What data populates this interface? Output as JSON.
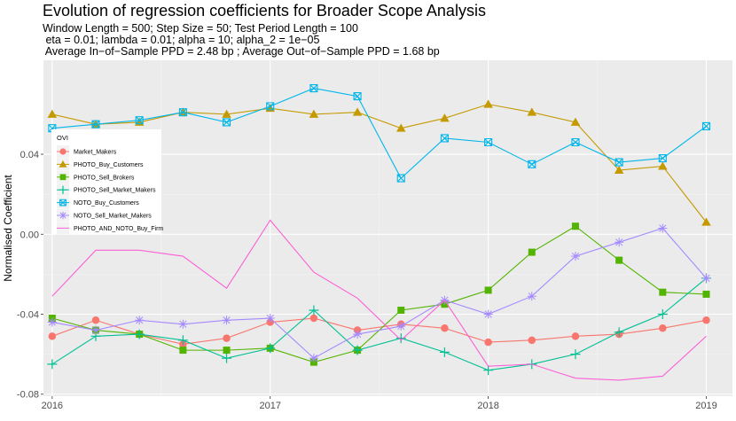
{
  "chart_data": {
    "type": "line",
    "title": "Evolution of regression coefficients for Broader Scope Analysis",
    "subtitle_lines": [
      "Window Length = 500; Step Size = 50; Test Period Length = 100",
      " eta = 0.01; lambda = 0.01; alpha = 10; alpha_2 = 1e−05",
      " Average In−of−Sample PPD = 2.48 bp ; Average Out−of−Sample PPD = 1.68 bp"
    ],
    "xlabel": "",
    "ylabel": "Normalised Coefficient",
    "legend_title": "OVI",
    "legend_position": "left-inside",
    "xlim": [
      2015.96,
      2019.12
    ],
    "ylim": [
      -0.081,
      0.087
    ],
    "x_ticks": [
      2016,
      2017,
      2018,
      2019
    ],
    "x_tick_labels": [
      "2016",
      "2017",
      "2018",
      "2019"
    ],
    "y_ticks": [
      -0.08,
      -0.04,
      0.0,
      0.04
    ],
    "y_tick_labels": [
      "-0.08",
      "-0.04",
      "0.00",
      "0.04"
    ],
    "grid": true,
    "x": [
      2016.0,
      2016.2,
      2016.4,
      2016.6,
      2016.8,
      2017.0,
      2017.2,
      2017.4,
      2017.6,
      2017.8,
      2018.0,
      2018.2,
      2018.4,
      2018.6,
      2018.8,
      2019.0
    ],
    "series": [
      {
        "name": "Market_Makers",
        "color": "#F8766D",
        "marker": "circle",
        "values": [
          -0.051,
          -0.043,
          -0.05,
          -0.055,
          -0.052,
          -0.044,
          -0.042,
          -0.048,
          -0.045,
          -0.047,
          -0.054,
          -0.053,
          -0.051,
          -0.05,
          -0.047,
          -0.043
        ]
      },
      {
        "name": "PHOTO_Buy_Customers",
        "color": "#C49A00",
        "marker": "triangle",
        "values": [
          0.06,
          0.055,
          0.056,
          0.061,
          0.06,
          0.063,
          0.06,
          0.061,
          0.053,
          0.058,
          0.065,
          0.061,
          0.056,
          0.032,
          0.034,
          0.006
        ]
      },
      {
        "name": "PHOTO_Sell_Brokers",
        "color": "#53B400",
        "marker": "square",
        "values": [
          -0.042,
          -0.048,
          -0.05,
          -0.058,
          -0.058,
          -0.057,
          -0.064,
          -0.058,
          -0.038,
          -0.035,
          -0.028,
          -0.009,
          0.004,
          -0.013,
          -0.029,
          -0.03
        ]
      },
      {
        "name": "PHOTO_Sell_Market_Makers",
        "color": "#00C094",
        "marker": "plus",
        "values": [
          -0.065,
          -0.051,
          -0.05,
          -0.053,
          -0.062,
          -0.057,
          -0.038,
          -0.058,
          -0.052,
          -0.059,
          -0.068,
          -0.065,
          -0.06,
          -0.049,
          -0.04,
          -0.022
        ]
      },
      {
        "name": "NOTO_Buy_Customers",
        "color": "#00B6EB",
        "marker": "squarex",
        "values": [
          0.053,
          0.055,
          0.057,
          0.061,
          0.056,
          0.064,
          0.073,
          0.069,
          0.028,
          0.048,
          0.046,
          0.035,
          0.046,
          0.036,
          0.038,
          0.054
        ]
      },
      {
        "name": "NOTO_Sell_Market_Makers",
        "color": "#A58AFF",
        "marker": "star",
        "values": [
          -0.044,
          -0.048,
          -0.043,
          -0.045,
          -0.043,
          -0.042,
          -0.062,
          -0.05,
          -0.046,
          -0.033,
          -0.04,
          -0.031,
          -0.011,
          -0.004,
          0.003,
          -0.022
        ]
      },
      {
        "name": "PHOTO_AND_NOTO_Buy_Firm",
        "color": "#FB61D7",
        "marker": "none",
        "values": [
          -0.031,
          -0.008,
          -0.008,
          -0.011,
          -0.027,
          0.007,
          -0.019,
          -0.032,
          -0.053,
          -0.033,
          -0.066,
          -0.065,
          -0.072,
          -0.073,
          -0.071,
          -0.051
        ]
      }
    ]
  }
}
